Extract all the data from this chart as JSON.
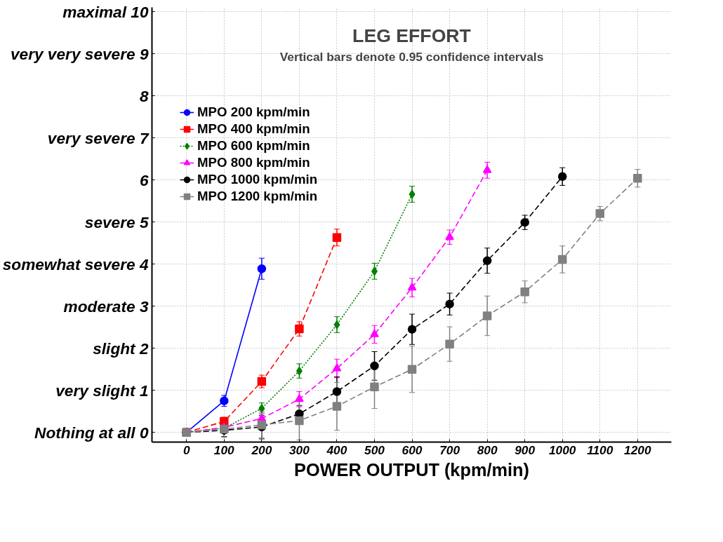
{
  "chart_data": {
    "type": "line",
    "title": "LEG EFFORT",
    "subtitle": "Vertical bars denote 0.95 confidence intervals",
    "xlabel": "POWER OUTPUT (kpm/min)",
    "xlim": [
      -92,
      1290
    ],
    "ylim": [
      -0.23,
      10.1
    ],
    "xticks": [
      0,
      100,
      200,
      300,
      400,
      500,
      600,
      700,
      800,
      900,
      1000,
      1100,
      1200
    ],
    "yticks": [
      {
        "value": 0,
        "label": "Nothing at all 0"
      },
      {
        "value": 1,
        "label": "very slight 1"
      },
      {
        "value": 2,
        "label": "slight 2"
      },
      {
        "value": 3,
        "label": "moderate 3"
      },
      {
        "value": 4,
        "label": "somewhat severe 4"
      },
      {
        "value": 5,
        "label": "severe 5"
      },
      {
        "value": 6,
        "label": "6"
      },
      {
        "value": 7,
        "label": "very severe 7"
      },
      {
        "value": 8,
        "label": "8"
      },
      {
        "value": 9,
        "label": "very very severe 9"
      },
      {
        "value": 10,
        "label": "maximal 10"
      }
    ],
    "grid": true,
    "legend": "top left",
    "series": [
      {
        "name": "MPO 200 kpm/min",
        "color": "#0000ff",
        "marker": "circle",
        "line_style": "solid",
        "x": [
          0,
          100,
          200
        ],
        "values": [
          0,
          0.75,
          3.89
        ],
        "errors": [
          null,
          0.13,
          0.25
        ]
      },
      {
        "name": "MPO 400 kpm/min",
        "color": "#ff0000",
        "marker": "square",
        "line_style": "dashed",
        "x": [
          0,
          100,
          200,
          300,
          400
        ],
        "values": [
          0,
          0.26,
          1.21,
          2.46,
          4.63
        ],
        "errors": [
          null,
          0.1,
          0.15,
          0.17,
          0.2
        ]
      },
      {
        "name": "MPO 600 kpm/min",
        "color": "#008000",
        "marker": "diamond",
        "line_style": "dotted",
        "x": [
          0,
          100,
          200,
          300,
          400,
          500,
          600
        ],
        "values": [
          0,
          0.1,
          0.57,
          1.46,
          2.56,
          3.83,
          5.66
        ],
        "errors": [
          null,
          null,
          0.13,
          0.17,
          0.19,
          0.19,
          0.19
        ]
      },
      {
        "name": "MPO 800 kpm/min",
        "color": "#ff00ff",
        "marker": "triangle",
        "line_style": "dashed",
        "x": [
          0,
          100,
          200,
          300,
          400,
          500,
          600,
          700,
          800
        ],
        "values": [
          0,
          0.12,
          0.33,
          0.79,
          1.52,
          2.33,
          3.44,
          4.64,
          6.23
        ],
        "errors": [
          null,
          null,
          0.15,
          0.18,
          0.22,
          0.21,
          0.22,
          0.17,
          0.19
        ]
      },
      {
        "name": "MPO 1000 kpm/min",
        "color": "#000000",
        "marker": "circle",
        "line_style": "dashed",
        "x": [
          0,
          100,
          200,
          300,
          400,
          500,
          600,
          700,
          800,
          900,
          1000
        ],
        "values": [
          0,
          0.05,
          0.13,
          0.44,
          0.97,
          1.58,
          2.45,
          3.05,
          4.08,
          4.99,
          6.08
        ],
        "errors": [
          null,
          0.15,
          0.27,
          0.2,
          0.35,
          0.34,
          0.36,
          0.26,
          0.3,
          0.17,
          0.21
        ]
      },
      {
        "name": "MPO 1200 kpm/min",
        "color": "#808080",
        "marker": "square",
        "line_style": "dashed",
        "x": [
          0,
          100,
          200,
          300,
          400,
          500,
          600,
          700,
          800,
          900,
          1000,
          1100,
          1200
        ],
        "values": [
          0,
          0.08,
          0.18,
          0.28,
          0.62,
          1.08,
          1.5,
          2.1,
          2.77,
          3.34,
          4.11,
          5.2,
          6.04
        ],
        "errors": [
          null,
          0.2,
          0.35,
          0.46,
          0.57,
          0.51,
          0.55,
          0.41,
          0.47,
          0.26,
          0.32,
          0.17,
          0.21
        ]
      }
    ]
  }
}
